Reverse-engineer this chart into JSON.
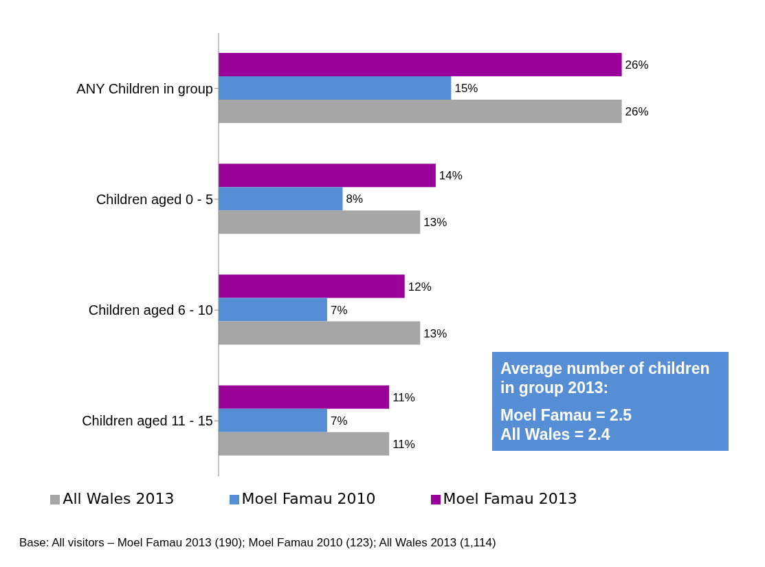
{
  "chart_data": {
    "type": "bar",
    "orientation": "horizontal",
    "categories": [
      "ANY Children in group",
      "Children aged 0 - 5",
      "Children aged 6 - 10",
      "Children aged 11 - 15"
    ],
    "series": [
      {
        "name": "Moel Famau 2013",
        "color": "#990099",
        "values": [
          26,
          14,
          12,
          11
        ],
        "value_labels": [
          "26%",
          "14%",
          "12%",
          "11%"
        ]
      },
      {
        "name": "Moel Famau 2010",
        "color": "#558ed5",
        "values": [
          15,
          8,
          7,
          7
        ],
        "value_labels": [
          "15%",
          "8%",
          "7%",
          "7%"
        ]
      },
      {
        "name": "All Wales 2013",
        "color": "#a6a6a6",
        "values": [
          26,
          13,
          13,
          11
        ],
        "value_labels": [
          "26%",
          "13%",
          "13%",
          "11%"
        ]
      }
    ],
    "legend": "bottom",
    "grid": false,
    "annotations": [
      "Average number of children in group 2013:",
      "Moel Famau = 2.5",
      "All Wales = 2.4",
      "Base: All visitors – Moel Famau 2013 (190); Moel Famau 2010 (123); All Wales 2013 (1,114)"
    ]
  }
}
